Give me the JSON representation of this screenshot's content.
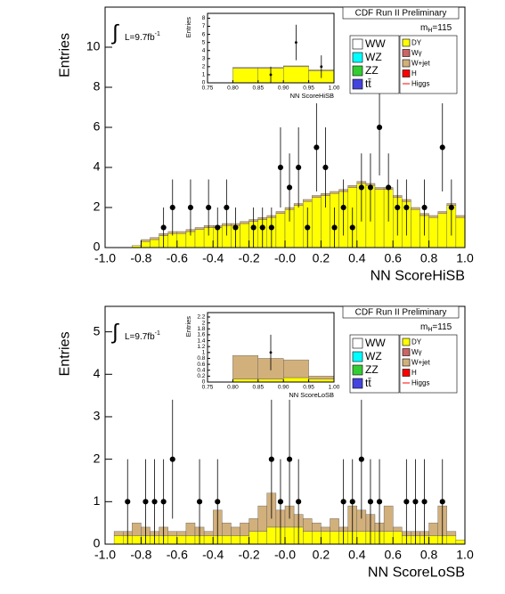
{
  "chart_data": [
    {
      "type": "histogram",
      "title": "CDF Run II Preliminary",
      "mass_label": {
        "main": "m",
        "sub": "H",
        "rest": "=115"
      },
      "lumi": {
        "symbol": "∫",
        "text": "L=9.7fb",
        "sup": "-1"
      },
      "xlabel": "NN ScoreHiSB",
      "ylabel": "Entries",
      "xlim": [
        -1.0,
        1.0
      ],
      "ylim": [
        0,
        12
      ],
      "xticks": [
        {
          "value": -1.0,
          "label": "-1.0"
        },
        -0.8,
        -0.6,
        -0.4,
        -0.2,
        {
          "value": 0,
          "label": "-0.0"
        },
        0.2,
        0.4,
        0.6,
        0.8,
        {
          "value": 1.0,
          "label": "1.0"
        }
      ],
      "yticks": [
        0,
        2,
        4,
        6,
        8,
        10
      ],
      "bins": [
        -1.0,
        -0.95,
        -0.9,
        -0.85,
        -0.8,
        -0.75,
        -0.7,
        -0.65,
        -0.6,
        -0.55,
        -0.5,
        -0.45,
        -0.4,
        -0.35,
        -0.3,
        -0.25,
        -0.2,
        -0.15,
        -0.1,
        -0.05,
        0,
        0.05,
        0.1,
        0.15,
        0.2,
        0.25,
        0.3,
        0.35,
        0.4,
        0.45,
        0.5,
        0.55,
        0.6,
        0.65,
        0.7,
        0.75,
        0.8,
        0.85,
        0.9,
        0.95,
        1.0
      ],
      "series": [
        {
          "name": "WW",
          "color": "#ffffff"
        },
        {
          "name": "WZ",
          "color": "#00ffff"
        },
        {
          "name": "ZZ",
          "color": "#33cc33"
        },
        {
          "name": "tt̄",
          "color": "#4444dd"
        },
        {
          "name": "DY",
          "color": "#ffff00",
          "values": [
            0,
            0,
            0,
            0.1,
            0.3,
            0.4,
            0.6,
            0.7,
            0.7,
            0.8,
            0.9,
            1.0,
            1.0,
            1.1,
            1.1,
            1.2,
            1.3,
            1.4,
            1.5,
            1.7,
            1.9,
            2.1,
            2.3,
            2.5,
            2.6,
            2.7,
            2.8,
            3.0,
            3.2,
            3.1,
            2.9,
            2.9,
            2.5,
            2.3,
            1.9,
            1.6,
            1.5,
            1.7,
            2.1,
            1.5
          ]
        },
        {
          "name": "Wγ",
          "color": "#cc6666"
        },
        {
          "name": "W+jet",
          "color": "#d2b07c",
          "values": [
            0,
            0,
            0,
            0,
            0.1,
            0.1,
            0.1,
            0.1,
            0.1,
            0.1,
            0.1,
            0.1,
            0.1,
            0.1,
            0.1,
            0.1,
            0.1,
            0.1,
            0.1,
            0.1,
            0.1,
            0.1,
            0.1,
            0.1,
            0.1,
            0.1,
            0.1,
            0.1,
            0.1,
            0.1,
            0.1,
            0.1,
            0.1,
            0.1,
            0.1,
            0.1,
            0.1,
            0.1,
            0.1,
            0.1
          ]
        },
        {
          "name": "H",
          "color": "#ff0000"
        },
        {
          "name": "Higgs",
          "color": "#ff0000",
          "style": "line"
        }
      ],
      "points": {
        "x": [
          -0.675,
          -0.625,
          -0.525,
          -0.425,
          -0.375,
          -0.325,
          -0.275,
          -0.175,
          -0.125,
          -0.075,
          -0.025,
          0.025,
          0.075,
          0.125,
          0.175,
          0.225,
          0.275,
          0.325,
          0.375,
          0.425,
          0.475,
          0.525,
          0.575,
          0.625,
          0.675,
          0.775,
          0.875,
          0.925
        ],
        "y": [
          1,
          2,
          2,
          2,
          1,
          2,
          1,
          1,
          1,
          1,
          4,
          3,
          4,
          1,
          5,
          4,
          1,
          2,
          1,
          3,
          3,
          6,
          3,
          2,
          2,
          2,
          5,
          2
        ],
        "errors": [
          1,
          1.4,
          1.4,
          1.4,
          1,
          1.4,
          1,
          1,
          1,
          1,
          2,
          1.7,
          2,
          1,
          2.2,
          2,
          1,
          1.4,
          1,
          1.7,
          1.7,
          2.4,
          1.7,
          1.4,
          1.4,
          1.4,
          2.2,
          1.4
        ]
      },
      "inset": {
        "xlabel": "NN ScoreHiSB",
        "ylabel": "Entries",
        "xlim": [
          0.75,
          1.0
        ],
        "ylim": [
          0,
          8.6
        ],
        "xticks": [
          0.75,
          {
            "value": 0.8,
            "label": "0.80"
          },
          0.85,
          {
            "value": 0.9,
            "label": "0.90"
          },
          0.95,
          {
            "value": 1.0,
            "label": "1.00"
          }
        ],
        "yticks": [
          0,
          1,
          2,
          3,
          4,
          5,
          6,
          7,
          8
        ],
        "bins": [
          0.75,
          0.8,
          0.85,
          0.9,
          0.95,
          1.0
        ],
        "series": [
          {
            "color": "#ffff00",
            "values": [
              0,
              1.8,
              1.8,
              2.0,
              1.5
            ]
          },
          {
            "color": "#d2b07c",
            "values": [
              0,
              0.1,
              0.1,
              0.1,
              0.1
            ]
          }
        ],
        "points": {
          "x": [
            0.875,
            0.925,
            0.975
          ],
          "y": [
            1,
            5,
            2
          ],
          "errors": [
            1,
            2.2,
            1.4
          ]
        }
      }
    },
    {
      "type": "histogram",
      "title": "CDF Run II Preliminary",
      "mass_label": {
        "main": "m",
        "sub": "H",
        "rest": "=115"
      },
      "lumi": {
        "symbol": "∫",
        "text": "L=9.7fb",
        "sup": "-1"
      },
      "xlabel": "NN ScoreLoSB",
      "ylabel": "Entries",
      "xlim": [
        -1.0,
        1.0
      ],
      "ylim": [
        0,
        5.6
      ],
      "xticks": [
        {
          "value": -1.0,
          "label": "-1.0"
        },
        -0.8,
        -0.6,
        -0.4,
        -0.2,
        {
          "value": 0,
          "label": "-0.0"
        },
        0.2,
        0.4,
        0.6,
        0.8,
        {
          "value": 1.0,
          "label": "1.0"
        }
      ],
      "yticks": [
        0,
        1,
        2,
        3,
        4,
        5
      ],
      "bins": [
        -1.0,
        -0.95,
        -0.9,
        -0.85,
        -0.8,
        -0.75,
        -0.7,
        -0.65,
        -0.6,
        -0.55,
        -0.5,
        -0.45,
        -0.4,
        -0.35,
        -0.3,
        -0.25,
        -0.2,
        -0.15,
        -0.1,
        -0.05,
        0,
        0.05,
        0.1,
        0.15,
        0.2,
        0.25,
        0.3,
        0.35,
        0.4,
        0.45,
        0.5,
        0.55,
        0.6,
        0.65,
        0.7,
        0.75,
        0.8,
        0.85,
        0.9,
        0.95,
        1.0
      ],
      "series": [
        {
          "name": "WW",
          "color": "#ffffff"
        },
        {
          "name": "WZ",
          "color": "#00ffff"
        },
        {
          "name": "ZZ",
          "color": "#33cc33"
        },
        {
          "name": "tt̄",
          "color": "#4444dd"
        },
        {
          "name": "DY",
          "color": "#ffff00",
          "values": [
            0,
            0.2,
            0.2,
            0.2,
            0.2,
            0.2,
            0.2,
            0.2,
            0.2,
            0.2,
            0.2,
            0.2,
            0.2,
            0.2,
            0.2,
            0.2,
            0.3,
            0.3,
            0.4,
            0.4,
            0.4,
            0.4,
            0.3,
            0.3,
            0.3,
            0.3,
            0.3,
            0.3,
            0.3,
            0.3,
            0.3,
            0.3,
            0.3,
            0.2,
            0.2,
            0.2,
            0.2,
            0.2,
            0.2,
            0.1
          ]
        },
        {
          "name": "Wγ",
          "color": "#cc6666"
        },
        {
          "name": "W+jet",
          "color": "#d2b07c",
          "values": [
            0,
            0.1,
            0.1,
            0.3,
            0.2,
            0.1,
            0.2,
            0.1,
            0.1,
            0.3,
            0.2,
            0.1,
            0.6,
            0.3,
            0.2,
            0.3,
            0.3,
            0.6,
            0.8,
            0.4,
            0.5,
            0.3,
            0.3,
            0.2,
            0.1,
            0.3,
            0.1,
            0.6,
            0.5,
            0.4,
            0.2,
            0.6,
            0.1,
            0.1,
            0.1,
            0.1,
            0.3,
            0.7,
            0.1,
            0
          ]
        },
        {
          "name": "H",
          "color": "#ff0000"
        },
        {
          "name": "Higgs",
          "color": "#ff0000",
          "style": "line"
        }
      ],
      "points": {
        "x": [
          -0.875,
          -0.775,
          -0.725,
          -0.675,
          -0.625,
          -0.475,
          -0.375,
          -0.075,
          -0.025,
          0.025,
          0.075,
          0.325,
          0.375,
          0.425,
          0.475,
          0.525,
          0.675,
          0.725,
          0.775,
          0.875
        ],
        "y": [
          1,
          1,
          1,
          1,
          2,
          1,
          1,
          2,
          1,
          2,
          1,
          1,
          1,
          2,
          1,
          1,
          1,
          1,
          1,
          1
        ],
        "errors": [
          1,
          1,
          1,
          1,
          1.4,
          1,
          1,
          1.4,
          1,
          1.4,
          1,
          1,
          1,
          1.4,
          1,
          1,
          1,
          1,
          1,
          1
        ]
      },
      "inset": {
        "xlabel": "NN ScoreLoSB",
        "ylabel": "Entries",
        "xlim": [
          0.75,
          1.0
        ],
        "ylim": [
          0,
          2.35
        ],
        "xticks": [
          0.75,
          {
            "value": 0.8,
            "label": "0.80"
          },
          0.85,
          {
            "value": 0.9,
            "label": "0.90"
          },
          0.95,
          {
            "value": 1.0,
            "label": "1.00"
          }
        ],
        "yticks": [
          0,
          0.2,
          0.4,
          0.6,
          0.8,
          1,
          1.2,
          1.4,
          1.6,
          1.8,
          2,
          2.2
        ],
        "bins": [
          0.75,
          0.8,
          0.85,
          0.9,
          0.95,
          1.0
        ],
        "series": [
          {
            "color": "#ffff00",
            "values": [
              0,
              0.1,
              0.1,
              0.15,
              0.1
            ]
          },
          {
            "color": "#d2b07c",
            "values": [
              0,
              0.8,
              0.7,
              0.6,
              0.1
            ]
          }
        ],
        "points": {
          "x": [
            0.875
          ],
          "y": [
            1
          ],
          "errors": [
            0.6
          ]
        }
      }
    }
  ]
}
